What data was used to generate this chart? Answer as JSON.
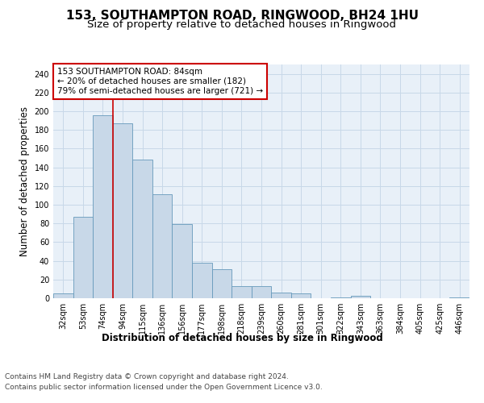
{
  "title": "153, SOUTHAMPTON ROAD, RINGWOOD, BH24 1HU",
  "subtitle": "Size of property relative to detached houses in Ringwood",
  "xlabel": "Distribution of detached houses by size in Ringwood",
  "ylabel": "Number of detached properties",
  "categories": [
    "32sqm",
    "53sqm",
    "74sqm",
    "94sqm",
    "115sqm",
    "136sqm",
    "156sqm",
    "177sqm",
    "198sqm",
    "218sqm",
    "239sqm",
    "260sqm",
    "281sqm",
    "301sqm",
    "322sqm",
    "343sqm",
    "363sqm",
    "384sqm",
    "405sqm",
    "425sqm",
    "446sqm"
  ],
  "values": [
    5,
    87,
    196,
    187,
    148,
    111,
    79,
    38,
    31,
    13,
    13,
    6,
    5,
    0,
    1,
    3,
    0,
    0,
    0,
    0,
    1
  ],
  "bar_color": "#c8d8e8",
  "bar_edge_color": "#6699bb",
  "vline_color": "#cc0000",
  "annotation_box_text": "153 SOUTHAMPTON ROAD: 84sqm\n← 20% of detached houses are smaller (182)\n79% of semi-detached houses are larger (721) →",
  "annotation_box_color": "#cc0000",
  "ylim": [
    0,
    250
  ],
  "yticks": [
    0,
    20,
    40,
    60,
    80,
    100,
    120,
    140,
    160,
    180,
    200,
    220,
    240
  ],
  "grid_color": "#c8d8e8",
  "bg_color": "#e8f0f8",
  "footer_line1": "Contains HM Land Registry data © Crown copyright and database right 2024.",
  "footer_line2": "Contains public sector information licensed under the Open Government Licence v3.0.",
  "title_fontsize": 11,
  "subtitle_fontsize": 9.5,
  "axis_label_fontsize": 8.5,
  "tick_fontsize": 7,
  "footer_fontsize": 6.5,
  "annot_fontsize": 7.5
}
